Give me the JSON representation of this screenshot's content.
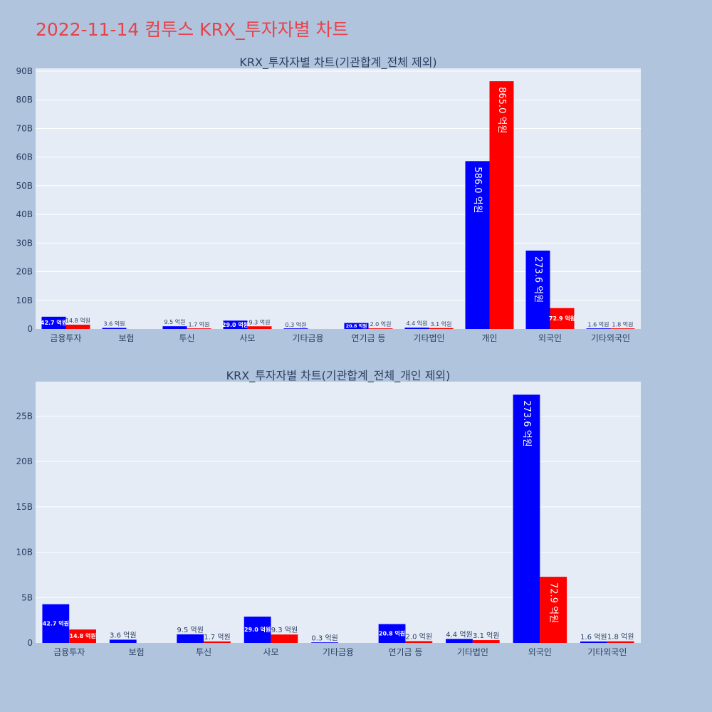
{
  "page": {
    "title": "2022-11-14 컴투스 KRX_투자자별 차트"
  },
  "colors": {
    "buy": "#0000ff",
    "sell": "#ff0000",
    "title": "#e8424a",
    "background": "#b0c4de",
    "plot_background": "#e5ecf6"
  },
  "chart_data": [
    {
      "type": "bar",
      "title": "KRX_투자자별 차트(기관합계_전체 제외)",
      "categories": [
        "금융투자",
        "보험",
        "투신",
        "사모",
        "기타금융",
        "연기금 등",
        "기타법인",
        "개인",
        "외국인",
        "기타외국인"
      ],
      "series": [
        {
          "color": "#0000ff",
          "values": [
            4.27,
            0.36,
            0.95,
            2.9,
            0.03,
            2.08,
            0.44,
            58.6,
            27.36,
            0.16
          ],
          "labels": [
            "42.7 억원",
            "3.6 억원",
            "9.5 억원",
            "29.0 억원",
            "0.3 억원",
            "20.8 억원",
            "4.4 억원",
            "586.0 억원",
            "273.6 억원",
            "1.6 억원"
          ]
        },
        {
          "color": "#ff0000",
          "values": [
            1.48,
            null,
            0.17,
            0.93,
            null,
            0.2,
            0.31,
            86.5,
            7.29,
            0.18
          ],
          "labels": [
            "14.8 억원",
            "",
            "1.7 억원",
            "9.3 억원",
            "",
            "2.0 억원",
            "3.1 억원",
            "865.0 억원",
            "72.9 억원",
            "1.8 억원"
          ]
        }
      ],
      "yticks": [
        "0",
        "10B",
        "20B",
        "30B",
        "40B",
        "50B",
        "60B",
        "70B",
        "80B",
        "90B"
      ],
      "ytick_values": [
        0,
        10,
        20,
        30,
        40,
        50,
        60,
        70,
        80,
        90
      ],
      "ylim": [
        0,
        91
      ],
      "grid": true
    },
    {
      "type": "bar",
      "title": "KRX_투자자별 차트(기관합계_전체_개인 제외)",
      "categories": [
        "금융투자",
        "보험",
        "투신",
        "사모",
        "기타금융",
        "연기금 등",
        "기타법인",
        "외국인",
        "기타외국인"
      ],
      "series": [
        {
          "color": "#0000ff",
          "values": [
            4.27,
            0.36,
            0.95,
            2.9,
            0.03,
            2.08,
            0.44,
            27.36,
            0.16
          ],
          "labels": [
            "42.7 억원",
            "3.6 억원",
            "9.5 억원",
            "29.0 억원",
            "0.3 억원",
            "20.8 억원",
            "4.4 억원",
            "273.6 억원",
            "1.6 억원"
          ]
        },
        {
          "color": "#ff0000",
          "values": [
            1.48,
            null,
            0.17,
            0.93,
            null,
            0.2,
            0.31,
            7.29,
            0.18
          ],
          "labels": [
            "14.8 억원",
            "",
            "1.7 억원",
            "9.3 억원",
            "",
            "2.0 억원",
            "3.1 억원",
            "72.9 억원",
            "1.8 억원"
          ]
        }
      ],
      "yticks": [
        "0",
        "5B",
        "10B",
        "15B",
        "20B",
        "25B"
      ],
      "ytick_values": [
        0,
        5,
        10,
        15,
        20,
        25
      ],
      "ylim": [
        0,
        28.8
      ],
      "grid": true
    }
  ]
}
